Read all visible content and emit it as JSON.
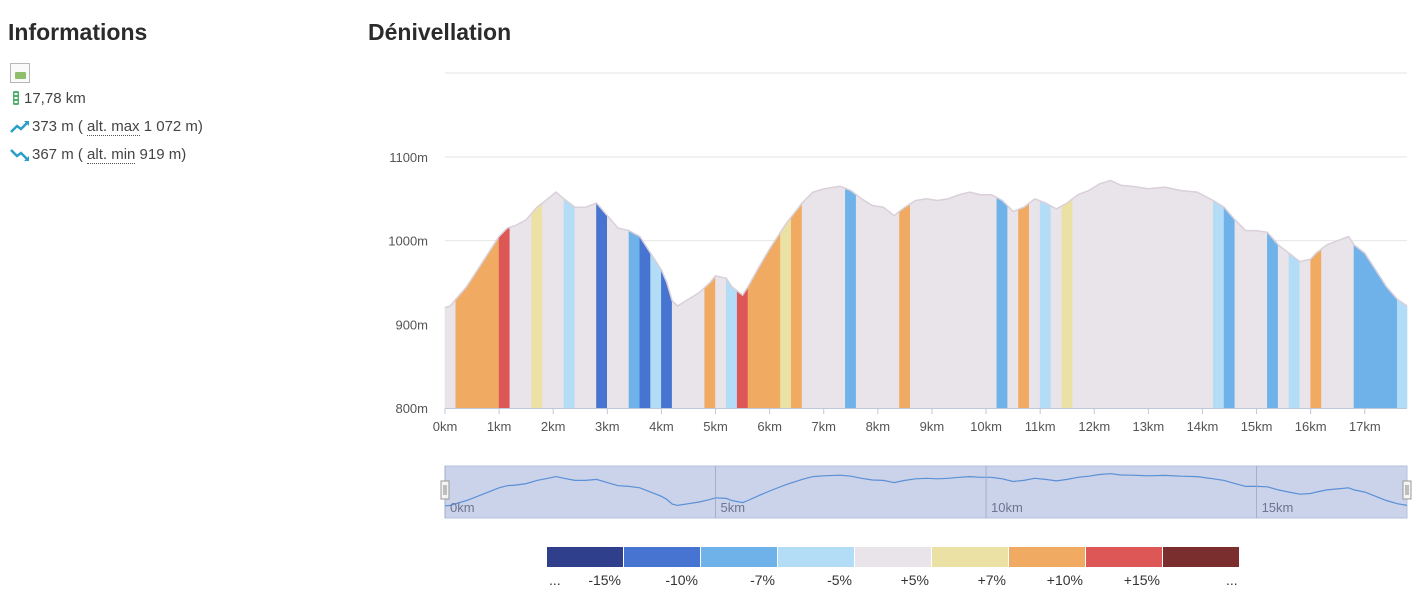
{
  "info": {
    "title": "Informations",
    "distance": "17,78 km",
    "ascent_value": "373 m (",
    "ascent_abbr": "alt. max",
    "ascent_rest": " 1 072 m)",
    "descent_value": "367 m (",
    "descent_abbr": "alt. min",
    "descent_rest": " 919 m)"
  },
  "chart_title": "Dénivellation",
  "colors": {
    "axis": "#bfc8d6",
    "grid": "#e6e6e6",
    "navigator_fill": "#cad3ea",
    "navigator_line": "#5b8fd6",
    "outline_blue": "#3f7fd9",
    "outline_orange": "#e0913f"
  },
  "chart_data": {
    "type": "area",
    "xlabel": "",
    "ylabel": "",
    "xlim": [
      0,
      17.78
    ],
    "ylim": [
      800,
      1100
    ],
    "x_ticks": [
      "0km",
      "1km",
      "2km",
      "3km",
      "4km",
      "5km",
      "6km",
      "7km",
      "8km",
      "9km",
      "10km",
      "11km",
      "12km",
      "13km",
      "14km",
      "15km",
      "16km",
      "17km"
    ],
    "y_ticks": [
      "800m",
      "900m",
      "1000m",
      "1100m"
    ],
    "navigator_ticks": [
      "0km",
      "5km",
      "10km",
      "15km"
    ],
    "profile": [
      [
        0.0,
        920
      ],
      [
        0.1,
        922
      ],
      [
        0.2,
        930
      ],
      [
        0.4,
        945
      ],
      [
        0.6,
        965
      ],
      [
        0.8,
        985
      ],
      [
        1.0,
        1005
      ],
      [
        1.15,
        1015
      ],
      [
        1.3,
        1018
      ],
      [
        1.5,
        1025
      ],
      [
        1.7,
        1040
      ],
      [
        1.9,
        1050
      ],
      [
        2.05,
        1058
      ],
      [
        2.2,
        1050
      ],
      [
        2.4,
        1040
      ],
      [
        2.6,
        1040
      ],
      [
        2.8,
        1045
      ],
      [
        3.0,
        1030
      ],
      [
        3.2,
        1015
      ],
      [
        3.4,
        1012
      ],
      [
        3.6,
        1005
      ],
      [
        3.8,
        985
      ],
      [
        4.0,
        965
      ],
      [
        4.1,
        950
      ],
      [
        4.2,
        928
      ],
      [
        4.3,
        922
      ],
      [
        4.5,
        930
      ],
      [
        4.7,
        938
      ],
      [
        4.9,
        950
      ],
      [
        5.0,
        958
      ],
      [
        5.2,
        955
      ],
      [
        5.3,
        945
      ],
      [
        5.5,
        935
      ],
      [
        5.6,
        945
      ],
      [
        5.8,
        968
      ],
      [
        6.0,
        990
      ],
      [
        6.3,
        1020
      ],
      [
        6.6,
        1045
      ],
      [
        6.8,
        1058
      ],
      [
        7.0,
        1062
      ],
      [
        7.3,
        1065
      ],
      [
        7.5,
        1060
      ],
      [
        7.7,
        1050
      ],
      [
        7.9,
        1042
      ],
      [
        8.1,
        1040
      ],
      [
        8.3,
        1030
      ],
      [
        8.5,
        1040
      ],
      [
        8.7,
        1048
      ],
      [
        8.9,
        1050
      ],
      [
        9.1,
        1048
      ],
      [
        9.3,
        1050
      ],
      [
        9.5,
        1055
      ],
      [
        9.7,
        1058
      ],
      [
        9.9,
        1055
      ],
      [
        10.1,
        1055
      ],
      [
        10.3,
        1048
      ],
      [
        10.5,
        1035
      ],
      [
        10.7,
        1040
      ],
      [
        10.9,
        1050
      ],
      [
        11.1,
        1045
      ],
      [
        11.3,
        1038
      ],
      [
        11.5,
        1045
      ],
      [
        11.7,
        1055
      ],
      [
        11.9,
        1060
      ],
      [
        12.1,
        1068
      ],
      [
        12.3,
        1072
      ],
      [
        12.5,
        1066
      ],
      [
        12.7,
        1065
      ],
      [
        13.0,
        1062
      ],
      [
        13.3,
        1064
      ],
      [
        13.6,
        1060
      ],
      [
        13.9,
        1058
      ],
      [
        14.2,
        1048
      ],
      [
        14.4,
        1040
      ],
      [
        14.6,
        1025
      ],
      [
        14.8,
        1012
      ],
      [
        15.0,
        1012
      ],
      [
        15.2,
        1010
      ],
      [
        15.4,
        995
      ],
      [
        15.6,
        985
      ],
      [
        15.8,
        975
      ],
      [
        16.0,
        978
      ],
      [
        16.1,
        985
      ],
      [
        16.3,
        995
      ],
      [
        16.5,
        1000
      ],
      [
        16.7,
        1005
      ],
      [
        16.8,
        995
      ],
      [
        17.0,
        985
      ],
      [
        17.2,
        965
      ],
      [
        17.4,
        945
      ],
      [
        17.6,
        930
      ],
      [
        17.78,
        922
      ]
    ],
    "segments": [
      {
        "from": 0.0,
        "to": 0.2,
        "color": "#e9e3ea"
      },
      {
        "from": 0.2,
        "to": 1.0,
        "color": "#f0aa62"
      },
      {
        "from": 1.0,
        "to": 1.2,
        "color": "#de5757"
      },
      {
        "from": 1.2,
        "to": 1.6,
        "color": "#e9e3ea"
      },
      {
        "from": 1.6,
        "to": 1.8,
        "color": "#ece1a5"
      },
      {
        "from": 1.8,
        "to": 2.2,
        "color": "#e9e3ea"
      },
      {
        "from": 2.2,
        "to": 2.4,
        "color": "#b3ddf7"
      },
      {
        "from": 2.4,
        "to": 2.8,
        "color": "#e9e3ea"
      },
      {
        "from": 2.8,
        "to": 3.0,
        "color": "#4774d1"
      },
      {
        "from": 3.0,
        "to": 3.4,
        "color": "#e9e3ea"
      },
      {
        "from": 3.4,
        "to": 3.6,
        "color": "#6fb2ea"
      },
      {
        "from": 3.6,
        "to": 3.8,
        "color": "#4774d1"
      },
      {
        "from": 3.8,
        "to": 4.0,
        "color": "#b3ddf7"
      },
      {
        "from": 4.0,
        "to": 4.2,
        "color": "#4774d1"
      },
      {
        "from": 4.2,
        "to": 4.8,
        "color": "#e9e3ea"
      },
      {
        "from": 4.8,
        "to": 5.0,
        "color": "#f0aa62"
      },
      {
        "from": 5.0,
        "to": 5.2,
        "color": "#e9e3ea"
      },
      {
        "from": 5.2,
        "to": 5.4,
        "color": "#b3ddf7"
      },
      {
        "from": 5.4,
        "to": 5.6,
        "color": "#de5757"
      },
      {
        "from": 5.6,
        "to": 6.2,
        "color": "#f0aa62"
      },
      {
        "from": 6.2,
        "to": 6.4,
        "color": "#ece1a5"
      },
      {
        "from": 6.4,
        "to": 6.6,
        "color": "#f0aa62"
      },
      {
        "from": 6.6,
        "to": 7.4,
        "color": "#e9e3ea"
      },
      {
        "from": 7.4,
        "to": 7.6,
        "color": "#6fb2ea"
      },
      {
        "from": 7.6,
        "to": 8.4,
        "color": "#e9e3ea"
      },
      {
        "from": 8.4,
        "to": 8.6,
        "color": "#f0aa62"
      },
      {
        "from": 8.6,
        "to": 10.2,
        "color": "#e9e3ea"
      },
      {
        "from": 10.2,
        "to": 10.4,
        "color": "#6fb2ea"
      },
      {
        "from": 10.4,
        "to": 10.6,
        "color": "#e9e3ea"
      },
      {
        "from": 10.6,
        "to": 10.8,
        "color": "#f0aa62"
      },
      {
        "from": 10.8,
        "to": 11.0,
        "color": "#e9e3ea"
      },
      {
        "from": 11.0,
        "to": 11.2,
        "color": "#b3ddf7"
      },
      {
        "from": 11.2,
        "to": 11.4,
        "color": "#e9e3ea"
      },
      {
        "from": 11.4,
        "to": 11.6,
        "color": "#ece1a5"
      },
      {
        "from": 11.6,
        "to": 14.2,
        "color": "#e9e3ea"
      },
      {
        "from": 14.2,
        "to": 14.4,
        "color": "#b3ddf7"
      },
      {
        "from": 14.4,
        "to": 14.6,
        "color": "#6fb2ea"
      },
      {
        "from": 14.6,
        "to": 15.2,
        "color": "#e9e3ea"
      },
      {
        "from": 15.2,
        "to": 15.4,
        "color": "#6fb2ea"
      },
      {
        "from": 15.4,
        "to": 15.6,
        "color": "#e9e3ea"
      },
      {
        "from": 15.6,
        "to": 15.8,
        "color": "#b3ddf7"
      },
      {
        "from": 15.8,
        "to": 16.0,
        "color": "#e9e3ea"
      },
      {
        "from": 16.0,
        "to": 16.2,
        "color": "#f0aa62"
      },
      {
        "from": 16.2,
        "to": 16.8,
        "color": "#e9e3ea"
      },
      {
        "from": 16.8,
        "to": 17.6,
        "color": "#6fb2ea"
      },
      {
        "from": 17.6,
        "to": 17.78,
        "color": "#b3ddf7"
      }
    ],
    "legend": {
      "colors": [
        "#303f8b",
        "#4774d1",
        "#6fb2ea",
        "#b3ddf7",
        "#e9e3ea",
        "#ece1a5",
        "#f0aa62",
        "#de5757",
        "#7a2e2e"
      ],
      "labels": [
        "...",
        "-15%",
        "-10%",
        "-7%",
        "-5%",
        "+5%",
        "+7%",
        "+10%",
        "+15%",
        "..."
      ]
    },
    "grid": true
  }
}
